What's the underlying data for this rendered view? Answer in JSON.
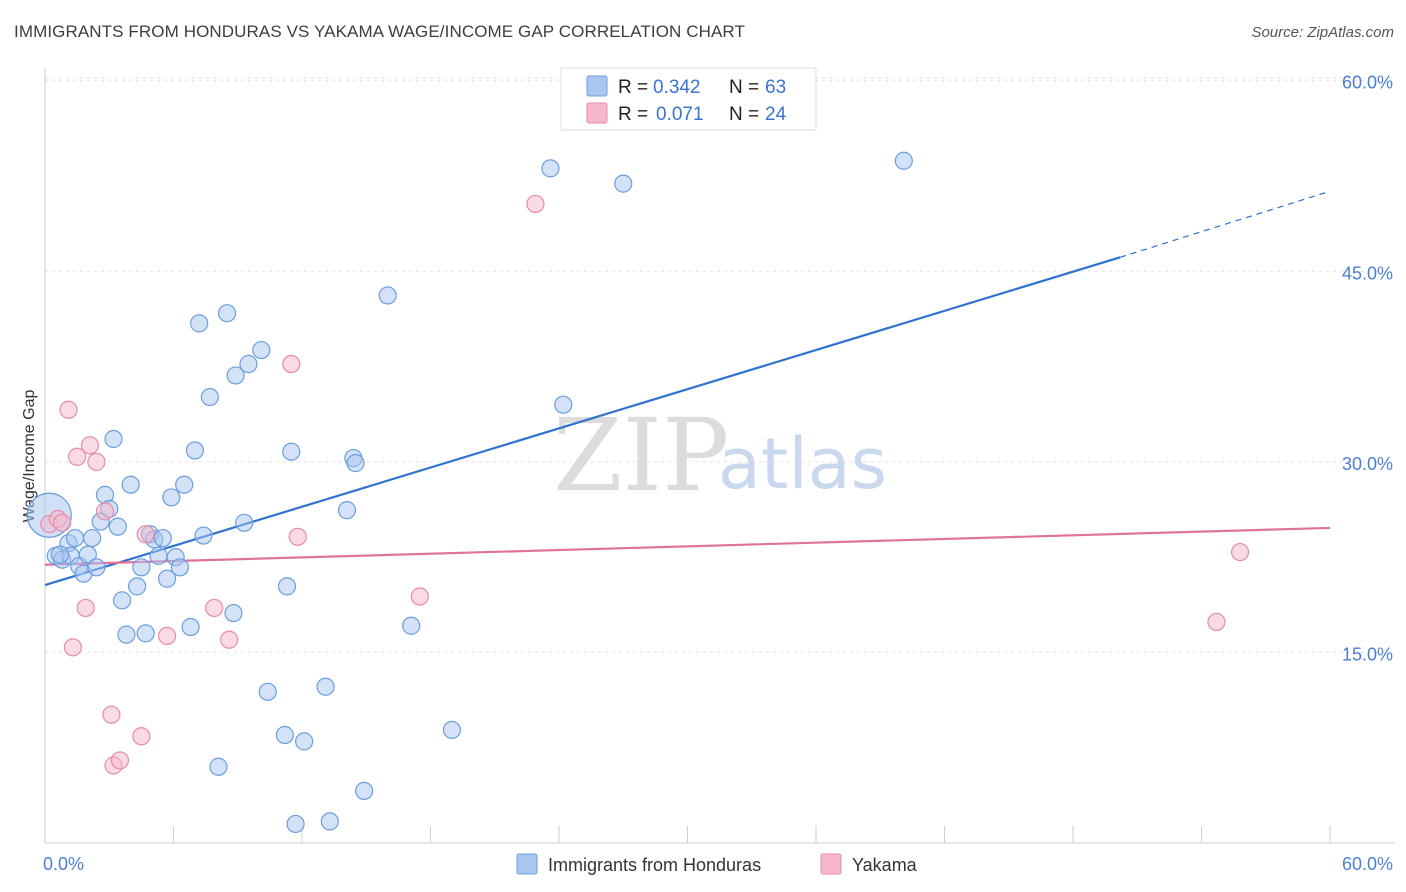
{
  "header": {
    "title": "IMMIGRANTS FROM HONDURAS VS YAKAMA WAGE/INCOME GAP CORRELATION CHART",
    "source": "Source: ZipAtlas.com"
  },
  "watermark": {
    "zip": "ZIP",
    "atlas": "atlas"
  },
  "legend": {
    "rows": [
      {
        "r_label": "R =",
        "r_value": "0.342",
        "n_label": "N =",
        "n_value": "63",
        "color": "#a9c6f0"
      },
      {
        "r_label": "R =",
        "r_value": "0.071",
        "n_label": "N =",
        "n_value": "24",
        "color": "#f5b8cb"
      }
    ]
  },
  "bottom_legend": {
    "items": [
      {
        "label": "Immigrants from Honduras",
        "color": "#a9c6f0"
      },
      {
        "label": "Yakama",
        "color": "#f5b8cb"
      }
    ]
  },
  "chart_data": {
    "type": "scatter",
    "title": "IMMIGRANTS FROM HONDURAS VS YAKAMA WAGE/INCOME GAP CORRELATION CHART",
    "xlabel": "",
    "ylabel": "Wage/Income Gap",
    "xlim": [
      0,
      60
    ],
    "ylim": [
      0,
      61
    ],
    "x_tick_labels": [
      "0.0%",
      "60.0%"
    ],
    "y_ticks": [
      {
        "value": 15,
        "label": "15.0%"
      },
      {
        "value": 30,
        "label": "30.0%"
      },
      {
        "value": 45,
        "label": "45.0%"
      },
      {
        "value": 60,
        "label": "60.0%"
      }
    ],
    "series": [
      {
        "name": "Immigrants from Honduras",
        "color": "#6a9ee0",
        "fill": "#a9c6f0",
        "points": [
          [
            0.2,
            25.8
          ],
          [
            0.5,
            22.6
          ],
          [
            0.8,
            22.3
          ],
          [
            1.1,
            23.6
          ],
          [
            1.2,
            22.6
          ],
          [
            1.4,
            24.0
          ],
          [
            1.6,
            21.8
          ],
          [
            1.8,
            21.2
          ],
          [
            2.0,
            22.7
          ],
          [
            2.2,
            24.0
          ],
          [
            2.4,
            21.7
          ],
          [
            2.6,
            25.3
          ],
          [
            2.8,
            27.4
          ],
          [
            3.0,
            26.3
          ],
          [
            3.2,
            31.8
          ],
          [
            3.4,
            24.9
          ],
          [
            3.6,
            19.1
          ],
          [
            3.8,
            16.4
          ],
          [
            4.0,
            28.2
          ],
          [
            4.3,
            20.2
          ],
          [
            4.5,
            21.7
          ],
          [
            4.7,
            16.5
          ],
          [
            4.9,
            24.3
          ],
          [
            5.1,
            23.9
          ],
          [
            5.3,
            22.6
          ],
          [
            5.5,
            24.0
          ],
          [
            5.7,
            20.8
          ],
          [
            5.9,
            27.2
          ],
          [
            6.1,
            22.5
          ],
          [
            6.3,
            21.7
          ],
          [
            6.5,
            28.2
          ],
          [
            6.8,
            17.0
          ],
          [
            7.0,
            30.9
          ],
          [
            7.2,
            40.9
          ],
          [
            7.4,
            24.2
          ],
          [
            7.7,
            35.1
          ],
          [
            8.1,
            6.0
          ],
          [
            8.5,
            41.7
          ],
          [
            8.8,
            18.1
          ],
          [
            8.9,
            36.8
          ],
          [
            9.3,
            25.2
          ],
          [
            9.5,
            37.7
          ],
          [
            10.1,
            38.8
          ],
          [
            10.4,
            11.9
          ],
          [
            11.2,
            8.5
          ],
          [
            11.3,
            20.2
          ],
          [
            11.5,
            30.8
          ],
          [
            11.7,
            1.5
          ],
          [
            12.1,
            8.0
          ],
          [
            13.1,
            12.3
          ],
          [
            13.3,
            1.7
          ],
          [
            14.1,
            26.2
          ],
          [
            14.4,
            30.3
          ],
          [
            14.5,
            29.9
          ],
          [
            14.9,
            4.1
          ],
          [
            16.0,
            43.1
          ],
          [
            17.1,
            17.1
          ],
          [
            19.0,
            8.9
          ],
          [
            24.2,
            34.5
          ],
          [
            23.6,
            53.1
          ],
          [
            27.0,
            51.9
          ],
          [
            40.1,
            53.7
          ],
          [
            0.7,
            22.7
          ]
        ],
        "trend": {
          "x0": 0,
          "y0": 20.3,
          "x1": 50.2,
          "y1": 46.1,
          "x_dash_end": 60,
          "y_dash_end": 51.3
        }
      },
      {
        "name": "Yakama",
        "color": "#e88aa8",
        "fill": "#f5b8cb",
        "points": [
          [
            0.2,
            25.1
          ],
          [
            0.6,
            25.5
          ],
          [
            0.8,
            25.2
          ],
          [
            1.1,
            34.1
          ],
          [
            1.3,
            15.4
          ],
          [
            1.5,
            30.4
          ],
          [
            1.9,
            18.5
          ],
          [
            2.1,
            31.3
          ],
          [
            2.4,
            30.0
          ],
          [
            2.8,
            26.1
          ],
          [
            3.1,
            10.1
          ],
          [
            3.2,
            6.1
          ],
          [
            3.5,
            6.5
          ],
          [
            4.5,
            8.4
          ],
          [
            4.7,
            24.3
          ],
          [
            5.7,
            16.3
          ],
          [
            7.9,
            18.5
          ],
          [
            8.6,
            16.0
          ],
          [
            11.5,
            37.7
          ],
          [
            11.8,
            24.1
          ],
          [
            17.5,
            19.4
          ],
          [
            22.9,
            50.3
          ],
          [
            55.8,
            22.9
          ],
          [
            54.7,
            17.4
          ]
        ],
        "trend": {
          "x0": 0,
          "y0": 21.9,
          "x1": 60,
          "y1": 24.8
        }
      }
    ]
  }
}
